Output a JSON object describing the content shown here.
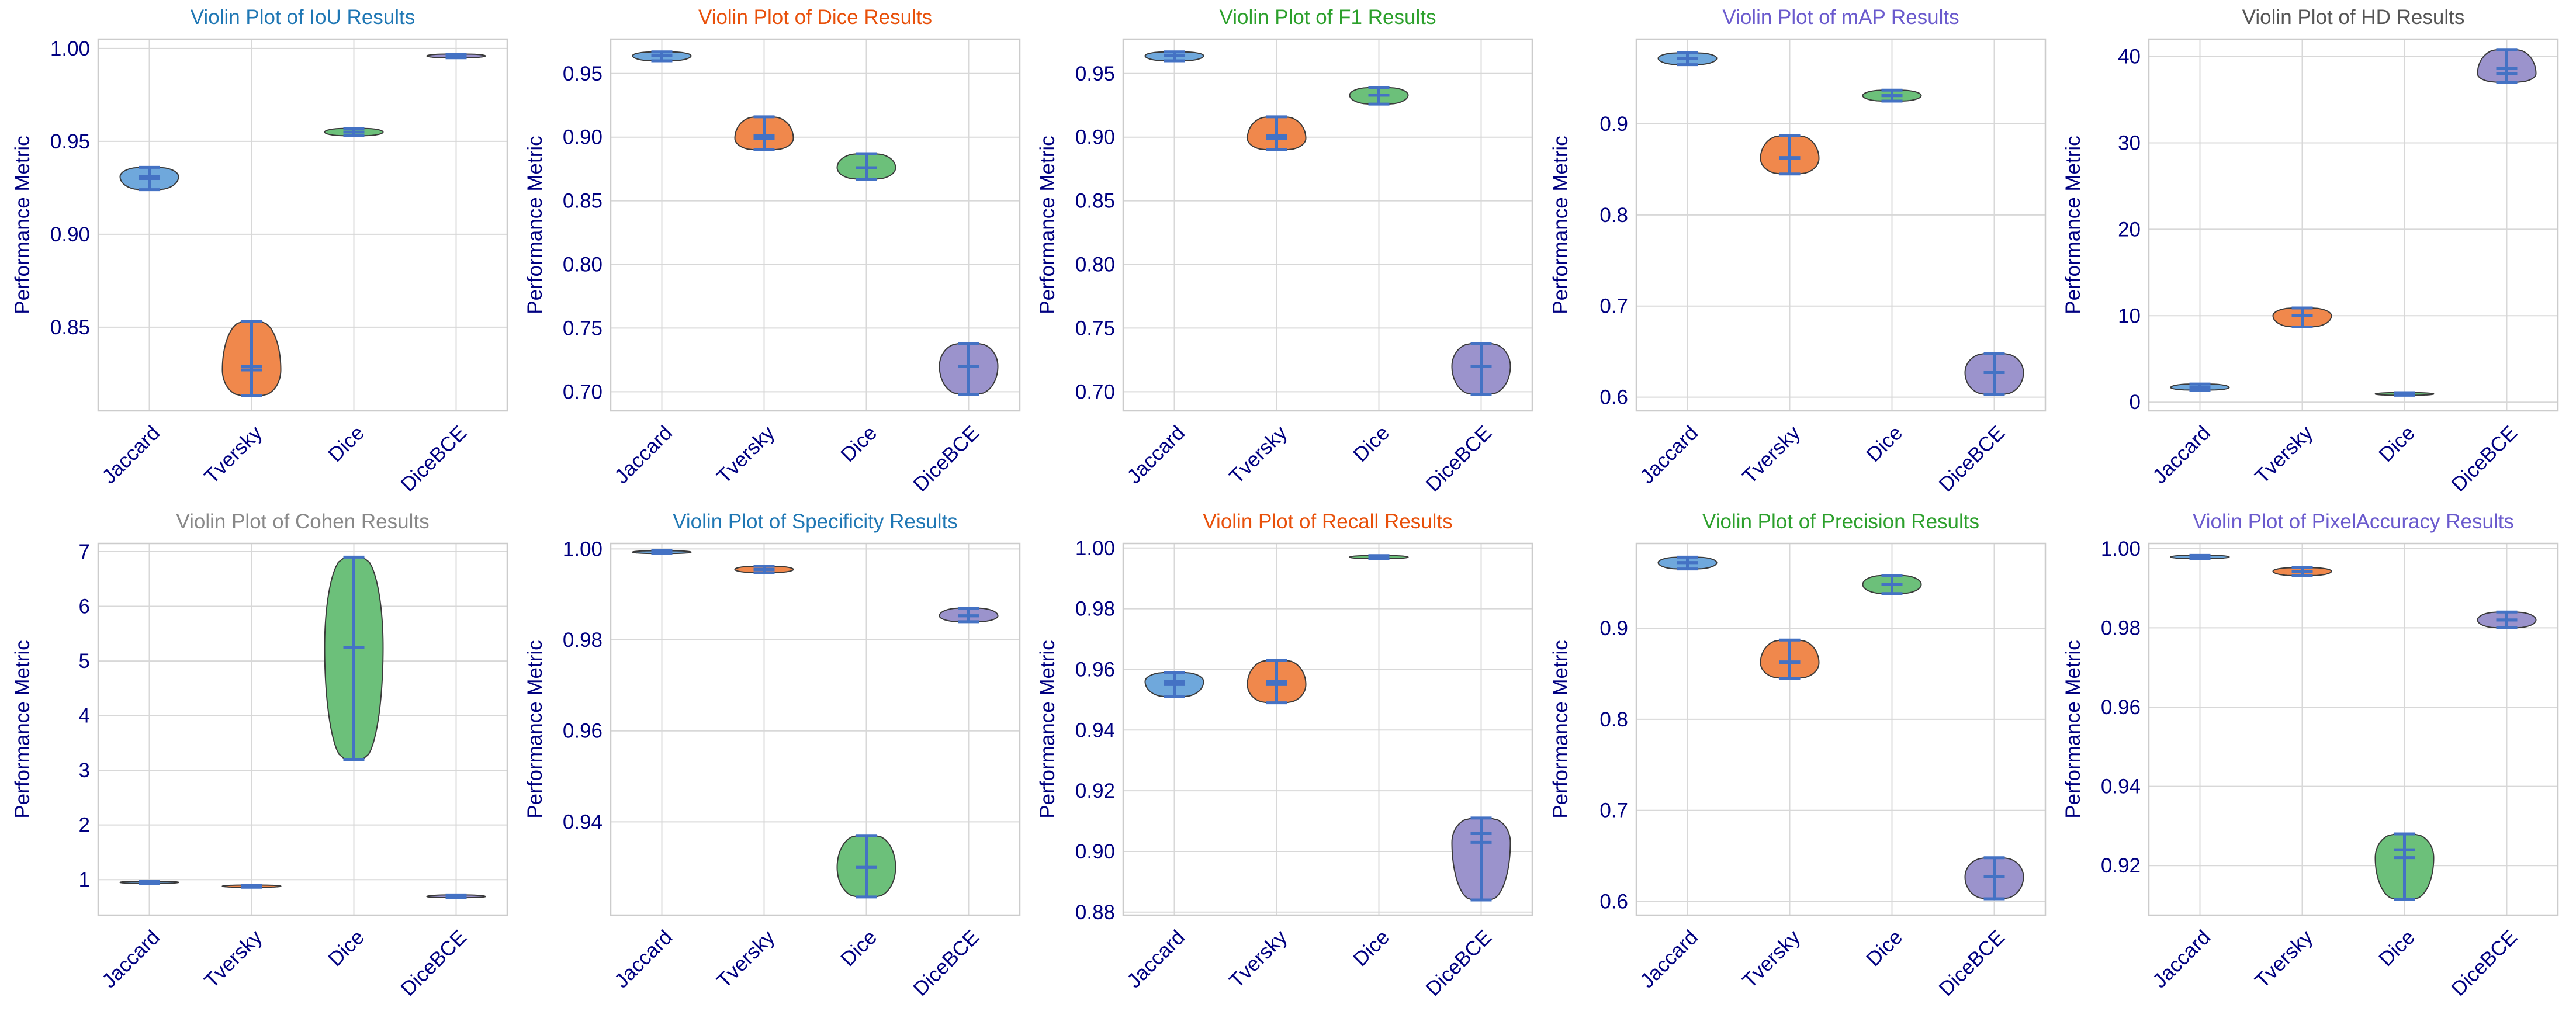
{
  "figure": {
    "y_axis_label": "Performance Metric"
  },
  "chart_data": [
    {
      "type": "violin",
      "title": "Violin Plot of IoU Results",
      "title_color": "#1f77b4",
      "ylabel": "Performance Metric",
      "categories": [
        "Jaccard",
        "Tversky",
        "Dice",
        "DiceBCE"
      ],
      "ylim": [
        0.805,
        1.005
      ],
      "yticks": [
        "0.85",
        "0.90",
        "0.95",
        "1.00"
      ],
      "violins": [
        {
          "min": 0.924,
          "max": 0.936,
          "median": 0.931,
          "mean": 0.93
        },
        {
          "min": 0.813,
          "max": 0.853,
          "median": 0.827,
          "mean": 0.829
        },
        {
          "min": 0.953,
          "max": 0.957,
          "median": 0.955,
          "mean": 0.955
        },
        {
          "min": 0.995,
          "max": 0.997,
          "median": 0.996,
          "mean": 0.996
        }
      ]
    },
    {
      "type": "violin",
      "title": "Violin Plot of Dice Results",
      "title_color": "#e8500a",
      "ylabel": "Performance Metric",
      "categories": [
        "Jaccard",
        "Tversky",
        "Dice",
        "DiceBCE"
      ],
      "ylim": [
        0.685,
        0.977
      ],
      "yticks": [
        "0.70",
        "0.75",
        "0.80",
        "0.85",
        "0.90",
        "0.95"
      ],
      "violins": [
        {
          "min": 0.96,
          "max": 0.967,
          "median": 0.964,
          "mean": 0.964
        },
        {
          "min": 0.89,
          "max": 0.916,
          "median": 0.899,
          "mean": 0.901
        },
        {
          "min": 0.867,
          "max": 0.887,
          "median": 0.876,
          "mean": 0.876
        },
        {
          "min": 0.698,
          "max": 0.738,
          "median": 0.72,
          "mean": 0.72
        }
      ]
    },
    {
      "type": "violin",
      "title": "Violin Plot of F1 Results",
      "title_color": "#2ca02c",
      "ylabel": "Performance Metric",
      "categories": [
        "Jaccard",
        "Tversky",
        "Dice",
        "DiceBCE"
      ],
      "ylim": [
        0.685,
        0.977
      ],
      "yticks": [
        "0.70",
        "0.75",
        "0.80",
        "0.85",
        "0.90",
        "0.95"
      ],
      "violins": [
        {
          "min": 0.96,
          "max": 0.967,
          "median": 0.964,
          "mean": 0.964
        },
        {
          "min": 0.89,
          "max": 0.916,
          "median": 0.899,
          "mean": 0.901
        },
        {
          "min": 0.926,
          "max": 0.939,
          "median": 0.933,
          "mean": 0.933
        },
        {
          "min": 0.698,
          "max": 0.738,
          "median": 0.72,
          "mean": 0.72
        }
      ]
    },
    {
      "type": "violin",
      "title": "Violin Plot of mAP Results",
      "title_color": "#6a5acd",
      "ylabel": "Performance Metric",
      "categories": [
        "Jaccard",
        "Tversky",
        "Dice",
        "DiceBCE"
      ],
      "ylim": [
        0.585,
        0.993
      ],
      "yticks": [
        "0.6",
        "0.7",
        "0.8",
        "0.9"
      ],
      "violins": [
        {
          "min": 0.965,
          "max": 0.978,
          "median": 0.972,
          "mean": 0.972
        },
        {
          "min": 0.845,
          "max": 0.887,
          "median": 0.862,
          "mean": 0.863
        },
        {
          "min": 0.925,
          "max": 0.937,
          "median": 0.931,
          "mean": 0.931
        },
        {
          "min": 0.603,
          "max": 0.648,
          "median": 0.627,
          "mean": 0.627
        }
      ]
    },
    {
      "type": "violin",
      "title": "Violin Plot of HD Results",
      "title_color": "#555555",
      "ylabel": "Performance Metric",
      "categories": [
        "Jaccard",
        "Tversky",
        "Dice",
        "DiceBCE"
      ],
      "ylim": [
        -1,
        42
      ],
      "yticks": [
        "0",
        "10",
        "20",
        "30",
        "40"
      ],
      "violins": [
        {
          "min": 1.4,
          "max": 2.1,
          "median": 1.7,
          "mean": 1.7
        },
        {
          "min": 8.7,
          "max": 10.9,
          "median": 10.0,
          "mean": 10.0
        },
        {
          "min": 0.8,
          "max": 1.1,
          "median": 0.95,
          "mean": 0.95
        },
        {
          "min": 37.0,
          "max": 40.8,
          "median": 38.0,
          "mean": 38.6
        }
      ]
    },
    {
      "type": "violin",
      "title": "Violin Plot of Cohen Results",
      "title_color": "#888888",
      "ylabel": "Performance Metric",
      "categories": [
        "Jaccard",
        "Tversky",
        "Dice",
        "DiceBCE"
      ],
      "ylim": [
        0.35,
        7.15
      ],
      "yticks": [
        "1",
        "2",
        "3",
        "4",
        "5",
        "6",
        "7"
      ],
      "violins": [
        {
          "min": 0.93,
          "max": 0.97,
          "median": 0.95,
          "mean": 0.95
        },
        {
          "min": 0.86,
          "max": 0.9,
          "median": 0.88,
          "mean": 0.88
        },
        {
          "min": 3.2,
          "max": 6.9,
          "median": 5.25,
          "mean": 5.25
        },
        {
          "min": 0.67,
          "max": 0.72,
          "median": 0.69,
          "mean": 0.69
        }
      ]
    },
    {
      "type": "violin",
      "title": "Violin Plot of Specificity Results",
      "title_color": "#1f77b4",
      "ylabel": "Performance Metric",
      "categories": [
        "Jaccard",
        "Tversky",
        "Dice",
        "DiceBCE"
      ],
      "ylim": [
        0.9195,
        1.0012
      ],
      "yticks": [
        "0.94",
        "0.96",
        "0.98",
        "1.00"
      ],
      "violins": [
        {
          "min": 0.999,
          "max": 0.9996,
          "median": 0.9993,
          "mean": 0.9993
        },
        {
          "min": 0.9948,
          "max": 0.9962,
          "median": 0.9955,
          "mean": 0.9955
        },
        {
          "min": 0.9235,
          "max": 0.937,
          "median": 0.93,
          "mean": 0.93
        },
        {
          "min": 0.984,
          "max": 0.987,
          "median": 0.9853,
          "mean": 0.9853
        }
      ]
    },
    {
      "type": "violin",
      "title": "Violin Plot of Recall Results",
      "title_color": "#e8500a",
      "ylabel": "Performance Metric",
      "categories": [
        "Jaccard",
        "Tversky",
        "Dice",
        "DiceBCE"
      ],
      "ylim": [
        0.879,
        1.0015
      ],
      "yticks": [
        "0.88",
        "0.90",
        "0.92",
        "0.94",
        "0.96",
        "0.98",
        "1.00"
      ],
      "violins": [
        {
          "min": 0.951,
          "max": 0.959,
          "median": 0.956,
          "mean": 0.955
        },
        {
          "min": 0.949,
          "max": 0.963,
          "median": 0.955,
          "mean": 0.956
        },
        {
          "min": 0.9965,
          "max": 0.9975,
          "median": 0.997,
          "mean": 0.997
        },
        {
          "min": 0.884,
          "max": 0.911,
          "median": 0.903,
          "mean": 0.906
        }
      ]
    },
    {
      "type": "violin",
      "title": "Violin Plot of Precision Results",
      "title_color": "#2ca02c",
      "ylabel": "Performance Metric",
      "categories": [
        "Jaccard",
        "Tversky",
        "Dice",
        "DiceBCE"
      ],
      "ylim": [
        0.585,
        0.993
      ],
      "yticks": [
        "0.6",
        "0.7",
        "0.8",
        "0.9"
      ],
      "violins": [
        {
          "min": 0.965,
          "max": 0.978,
          "median": 0.972,
          "mean": 0.972
        },
        {
          "min": 0.845,
          "max": 0.887,
          "median": 0.862,
          "mean": 0.863
        },
        {
          "min": 0.938,
          "max": 0.958,
          "median": 0.948,
          "mean": 0.948
        },
        {
          "min": 0.603,
          "max": 0.648,
          "median": 0.627,
          "mean": 0.627
        }
      ]
    },
    {
      "type": "violin",
      "title": "Violin Plot of PixelAccuracy Results",
      "title_color": "#6a5acd",
      "ylabel": "Performance Metric",
      "categories": [
        "Jaccard",
        "Tversky",
        "Dice",
        "DiceBCE"
      ],
      "ylim": [
        0.9075,
        1.0013
      ],
      "yticks": [
        "0.92",
        "0.94",
        "0.96",
        "0.98",
        "1.00"
      ],
      "violins": [
        {
          "min": 0.9975,
          "max": 0.9983,
          "median": 0.9979,
          "mean": 0.9979
        },
        {
          "min": 0.9932,
          "max": 0.9952,
          "median": 0.9943,
          "mean": 0.9943
        },
        {
          "min": 0.9115,
          "max": 0.928,
          "median": 0.922,
          "mean": 0.924
        },
        {
          "min": 0.98,
          "max": 0.984,
          "median": 0.982,
          "mean": 0.982
        }
      ]
    }
  ]
}
